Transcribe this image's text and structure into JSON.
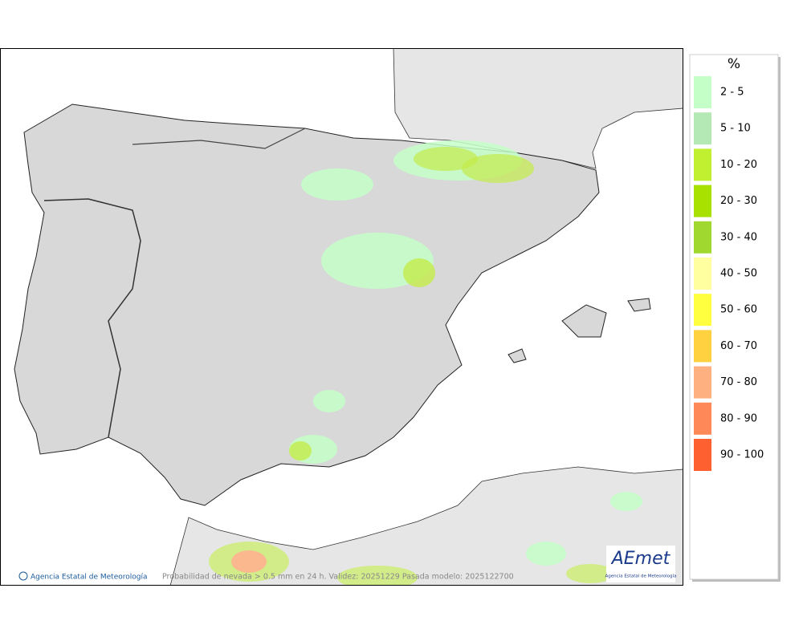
{
  "legend": {
    "title": "%",
    "items": [
      {
        "label": "2 - 5",
        "color": "#c4ffc8"
      },
      {
        "label": "5 - 10",
        "color": "#b4e8b4"
      },
      {
        "label": "10 - 20",
        "color": "#c0f030"
      },
      {
        "label": "20 - 30",
        "color": "#a8e000"
      },
      {
        "label": "30 - 40",
        "color": "#a0d830"
      },
      {
        "label": "40 - 50",
        "color": "#ffffa0"
      },
      {
        "label": "50 - 60",
        "color": "#ffff40"
      },
      {
        "label": "60 - 70",
        "color": "#ffd040"
      },
      {
        "label": "70 - 80",
        "color": "#ffb080"
      },
      {
        "label": "80 - 90",
        "color": "#ff8858"
      },
      {
        "label": "90 - 100",
        "color": "#ff6030"
      }
    ]
  },
  "footer": {
    "credit": "Agencia Estatal de Meteorología",
    "caption": "Probabilidad de nevada > 0.5 mm en 24 h. Validez: 20251229 Pasada modelo: 2025122700"
  },
  "logo": {
    "name": "AEmet",
    "subtitle": "Agencia Estatal de Meteorología"
  }
}
